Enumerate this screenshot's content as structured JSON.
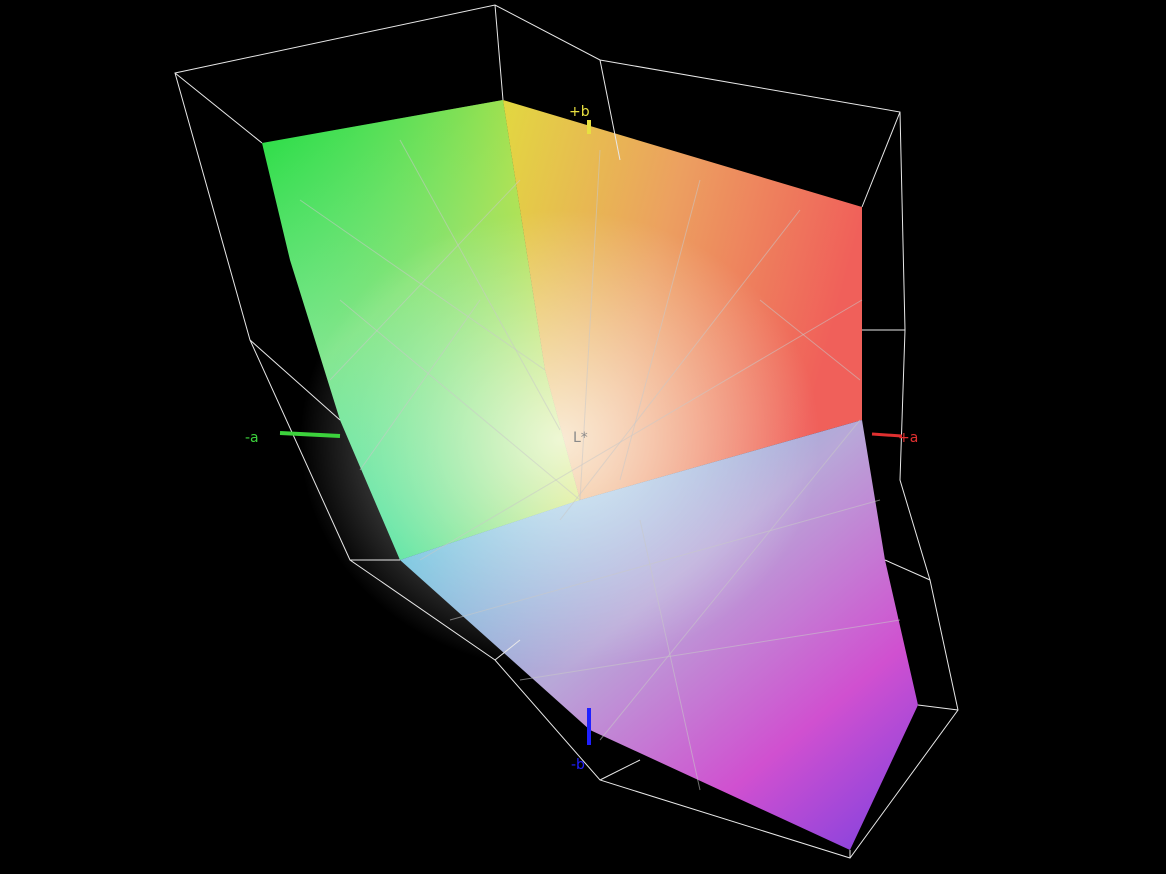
{
  "axis_labels": {
    "plus_b": "+b",
    "minus_b": "-b",
    "minus_a": "-a",
    "plus_a": "+a",
    "lightness": "L*"
  }
}
